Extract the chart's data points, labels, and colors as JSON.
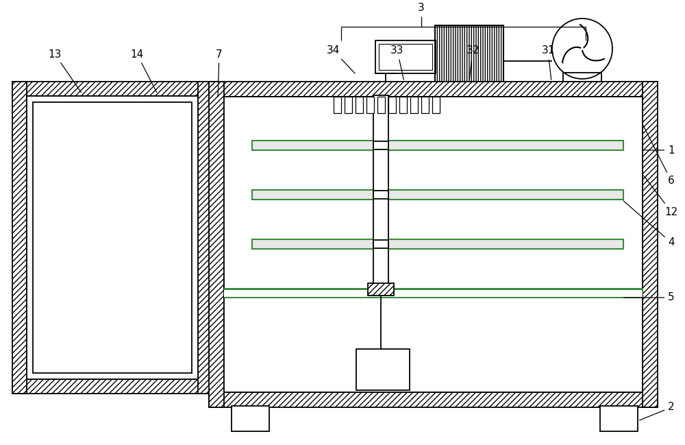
{
  "bg": "#ffffff",
  "lc": "#000000",
  "green": "#3a8a3a",
  "lw": 1.3,
  "fw": 10.0,
  "fh": 6.49,
  "dpi": 100
}
